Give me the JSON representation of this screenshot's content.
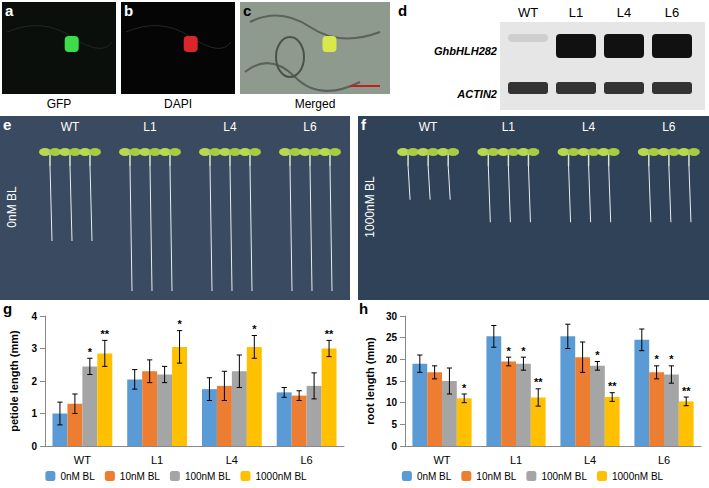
{
  "panels": {
    "a": {
      "letter": "a",
      "caption": "GFP"
    },
    "b": {
      "letter": "b",
      "caption": "DAPI"
    },
    "c": {
      "letter": "c",
      "caption": "Merged"
    },
    "d": {
      "letter": "d",
      "lanes": [
        "WT",
        "L1",
        "L4",
        "L6"
      ],
      "genes": [
        "GhbHLH282",
        "ACTIN2"
      ]
    },
    "e": {
      "letter": "e",
      "lines": [
        "WT",
        "L1",
        "L4",
        "L6"
      ],
      "treatment": "0nM BL"
    },
    "f": {
      "letter": "f",
      "lines": [
        "WT",
        "L1",
        "L4",
        "L6"
      ],
      "treatment": "1000nM BL"
    }
  },
  "chart_data": [
    {
      "panel": "g",
      "type": "bar",
      "y_label": "petiole length (mm)",
      "categories": [
        "WT",
        "L1",
        "L4",
        "L6"
      ],
      "series": [
        {
          "name": "0nM BL",
          "color": "#5b9bd5",
          "values": [
            1.0,
            2.05,
            1.75,
            1.65
          ],
          "errors": [
            0.35,
            0.3,
            0.35,
            0.15
          ],
          "significance": [
            null,
            null,
            null,
            null
          ]
        },
        {
          "name": "10nM BL",
          "color": "#ed7d31",
          "values": [
            1.3,
            2.3,
            1.85,
            1.55
          ],
          "errors": [
            0.3,
            0.35,
            0.45,
            0.15
          ],
          "significance": [
            null,
            null,
            null,
            null
          ]
        },
        {
          "name": "100nM BL",
          "color": "#a5a5a5",
          "values": [
            2.45,
            2.2,
            2.3,
            1.85
          ],
          "errors": [
            0.25,
            0.25,
            0.5,
            0.4
          ],
          "significance": [
            "*",
            null,
            null,
            null
          ]
        },
        {
          "name": "1000nM BL",
          "color": "#ffc000",
          "values": [
            2.85,
            3.05,
            3.05,
            3.0
          ],
          "errors": [
            0.4,
            0.5,
            0.35,
            0.25
          ],
          "significance": [
            "**",
            "*",
            "*",
            "**"
          ]
        }
      ],
      "ylim": [
        0,
        4
      ],
      "yticks": [
        0,
        1,
        2,
        3,
        4
      ],
      "grid": false,
      "legend": "bottom"
    },
    {
      "panel": "h",
      "type": "bar",
      "y_label": "root length (mm)",
      "categories": [
        "WT",
        "L1",
        "L4",
        "L6"
      ],
      "series": [
        {
          "name": "0nM BL",
          "color": "#5b9bd5",
          "values": [
            19,
            25.3,
            25.3,
            24.5
          ],
          "errors": [
            2,
            2.5,
            2.8,
            2.5
          ],
          "significance": [
            null,
            null,
            null,
            null
          ]
        },
        {
          "name": "10nM BL",
          "color": "#ed7d31",
          "values": [
            17,
            19.5,
            20.5,
            17
          ],
          "errors": [
            1.5,
            1,
            3.5,
            1.5
          ],
          "significance": [
            null,
            "*",
            null,
            "*"
          ]
        },
        {
          "name": "100nM BL",
          "color": "#a5a5a5",
          "values": [
            15,
            19,
            18.5,
            16.5
          ],
          "errors": [
            3,
            1.5,
            1,
            2
          ],
          "significance": [
            null,
            "*",
            "*",
            "*"
          ]
        },
        {
          "name": "1000nM BL",
          "color": "#ffc000",
          "values": [
            11,
            11.2,
            11.3,
            10.3
          ],
          "errors": [
            1,
            2,
            1,
            1
          ],
          "significance": [
            "*",
            "**",
            "**",
            "**"
          ]
        }
      ],
      "ylim": [
        0,
        30
      ],
      "yticks": [
        0,
        5,
        10,
        15,
        20,
        25,
        30
      ],
      "grid": false,
      "legend": "bottom"
    }
  ]
}
